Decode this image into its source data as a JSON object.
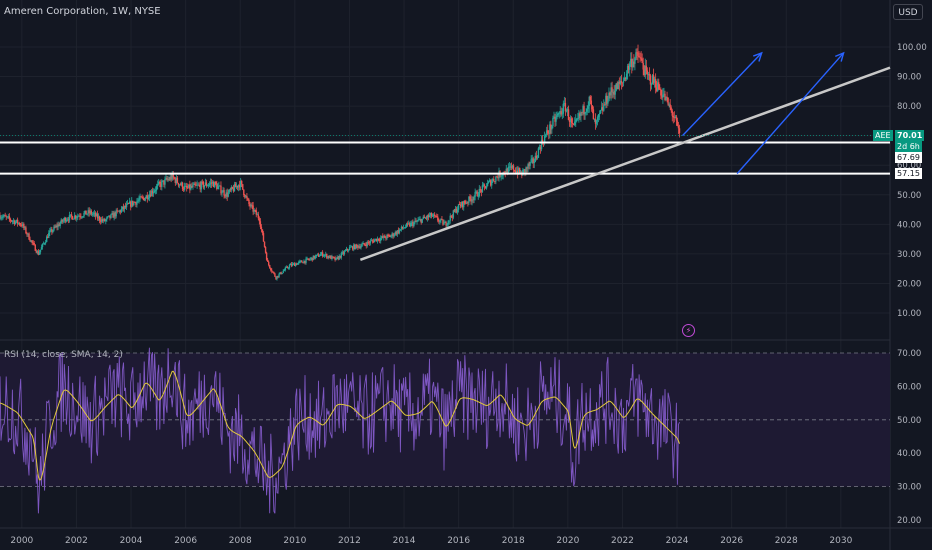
{
  "header": {
    "title": "Ameren Corporation, 1W, NYSE",
    "currency": "USD"
  },
  "price_pane": {
    "y_ticks": [
      "100.00",
      "90.00",
      "80.00",
      "70.00",
      "60.00",
      "50.00",
      "40.00",
      "30.00",
      "20.00",
      "10.00"
    ],
    "current": {
      "symbol": "AEE",
      "price": "70.01",
      "countdown": "2d 6h"
    },
    "levels": [
      "67.69",
      "57.15"
    ]
  },
  "rsi_pane": {
    "title": "RSI (14, close, SMA, 14, 2)",
    "y_ticks": [
      "70.00",
      "60.00",
      "50.00",
      "40.00",
      "30.00",
      "20.00"
    ]
  },
  "x_axis": {
    "labels": [
      "2000",
      "2002",
      "2004",
      "2006",
      "2008",
      "2010",
      "2012",
      "2014",
      "2016",
      "2018",
      "2020",
      "2022",
      "2024",
      "2026",
      "2028",
      "2030"
    ]
  },
  "colors": {
    "background": "#131722",
    "up": "#26a69a",
    "down": "#ef5350",
    "trendline": "#c8c8c8",
    "level_lines": "#ffffff",
    "projection_arrows": "#2962ff",
    "rsi_line": "#7e57c2",
    "rsi_ma": "#e2c93c",
    "rsi_band": "#1e1a33",
    "accent_green": "#089981"
  },
  "chart_data": [
    {
      "type": "candlestick",
      "title": "Ameren Corporation, 1W, NYSE",
      "x_range": [
        1999.2,
        2031.8
      ],
      "ylim": [
        0,
        105
      ],
      "price_path": [
        [
          1999.2,
          43
        ],
        [
          2000,
          40
        ],
        [
          2000.6,
          30
        ],
        [
          2001,
          37
        ],
        [
          2001.6,
          42
        ],
        [
          2002.5,
          44
        ],
        [
          2003,
          41
        ],
        [
          2003.5,
          44
        ],
        [
          2004,
          47
        ],
        [
          2004.5,
          49
        ],
        [
          2005,
          53
        ],
        [
          2005.5,
          56
        ],
        [
          2006,
          52
        ],
        [
          2006.5,
          53
        ],
        [
          2007,
          54
        ],
        [
          2007.5,
          50
        ],
        [
          2008,
          54
        ],
        [
          2008.3,
          47
        ],
        [
          2008.7,
          42
        ],
        [
          2009,
          27
        ],
        [
          2009.3,
          22
        ],
        [
          2009.8,
          26
        ],
        [
          2010.5,
          28
        ],
        [
          2011,
          30
        ],
        [
          2011.5,
          28
        ],
        [
          2012,
          32
        ],
        [
          2012.5,
          33
        ],
        [
          2013,
          35
        ],
        [
          2013.5,
          36
        ],
        [
          2014,
          39
        ],
        [
          2014.5,
          41
        ],
        [
          2015,
          43
        ],
        [
          2015.5,
          40
        ],
        [
          2016,
          46
        ],
        [
          2016.5,
          49
        ],
        [
          2017,
          53
        ],
        [
          2017.5,
          57
        ],
        [
          2018,
          59
        ],
        [
          2018.3,
          57
        ],
        [
          2018.8,
          62
        ],
        [
          2019,
          67
        ],
        [
          2019.5,
          75
        ],
        [
          2019.9,
          80
        ],
        [
          2020.2,
          72
        ],
        [
          2020.4,
          76
        ],
        [
          2020.8,
          82
        ],
        [
          2021,
          73
        ],
        [
          2021.5,
          84
        ],
        [
          2022,
          88
        ],
        [
          2022.3,
          95
        ],
        [
          2022.6,
          97
        ],
        [
          2022.9,
          90
        ],
        [
          2023.2,
          88
        ],
        [
          2023.6,
          82
        ],
        [
          2023.9,
          76
        ],
        [
          2024.1,
          70
        ]
      ],
      "trendline": [
        [
          2012.4,
          28
        ],
        [
          2031.8,
          93
        ]
      ],
      "horizontal_levels": [
        67.69,
        57.15
      ],
      "projection_arrows": [
        [
          [
            2024.2,
            70
          ],
          [
            2027.1,
            98
          ]
        ],
        [
          [
            2026.2,
            57.15
          ],
          [
            2030.1,
            98
          ]
        ]
      ]
    },
    {
      "type": "line",
      "title": "RSI (14, close, SMA, 14, 2)",
      "ylim": [
        18,
        72
      ],
      "band": [
        30,
        70
      ],
      "midline": 50,
      "series": [
        {
          "name": "RSI"
        },
        {
          "name": "SMA"
        }
      ],
      "x": [
        1999.2,
        1999.8,
        2000.4,
        2000.6,
        2001,
        2001.5,
        2002,
        2002.5,
        2003,
        2003.5,
        2004,
        2004.5,
        2005,
        2005.5,
        2006,
        2006.5,
        2007,
        2007.5,
        2008,
        2008.5,
        2009,
        2009.5,
        2010,
        2010.5,
        2011,
        2011.5,
        2012,
        2012.5,
        2013,
        2013.5,
        2014,
        2014.5,
        2015,
        2015.5,
        2016,
        2016.5,
        2017,
        2017.5,
        2018,
        2018.5,
        2019,
        2019.5,
        2020,
        2020.2,
        2020.5,
        2021,
        2021.5,
        2022,
        2022.5,
        2023,
        2023.5,
        2024,
        2024.1
      ],
      "sma": [
        55,
        52,
        44,
        28,
        48,
        60,
        55,
        49,
        54,
        58,
        53,
        62,
        55,
        66,
        50,
        55,
        60,
        47,
        45,
        40,
        32,
        36,
        49,
        51,
        48,
        55,
        54,
        50,
        53,
        56,
        51,
        52,
        56,
        47,
        57,
        56,
        54,
        58,
        50,
        48,
        56,
        57,
        52,
        38,
        52,
        53,
        56,
        50,
        57,
        52,
        48,
        44,
        41
      ]
    }
  ]
}
